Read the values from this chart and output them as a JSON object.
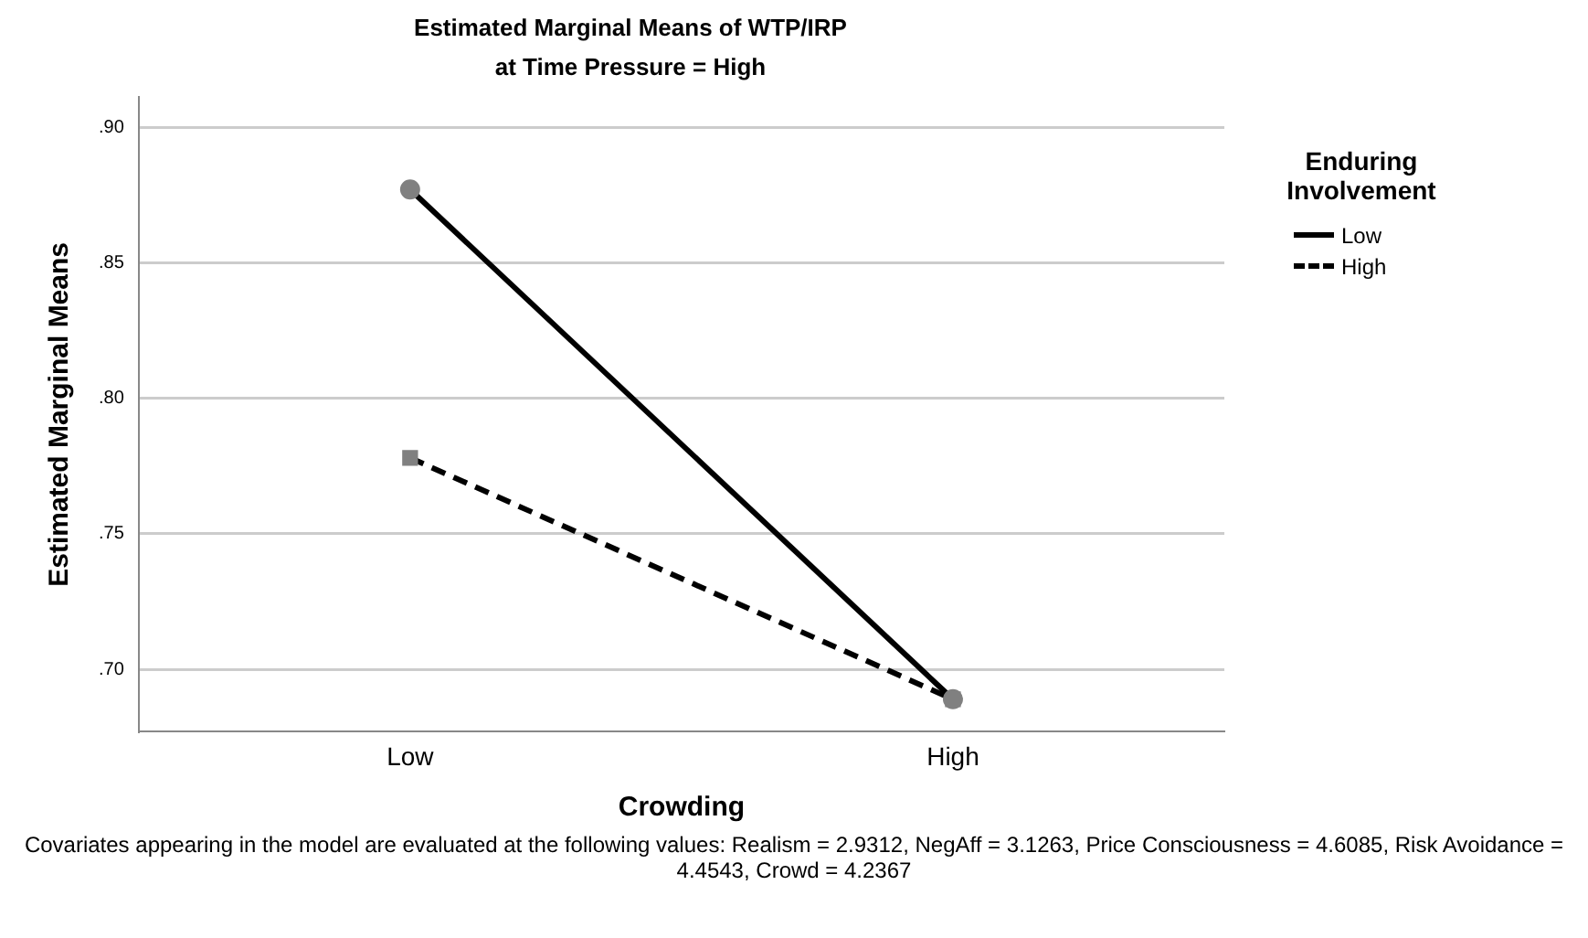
{
  "chart_data": {
    "type": "line",
    "title": "Estimated Marginal Means of WTP/IRP",
    "subtitle": "at Time Pressure = High",
    "xlabel": "Crowding",
    "ylabel": "Estimated Marginal Means",
    "legend_title": "Enduring Involvement",
    "categories": [
      "Low",
      "High"
    ],
    "series": [
      {
        "name": "Low",
        "color": "#000000",
        "values": [
          0.877,
          0.689
        ],
        "line_style": "solid",
        "marker": "circle"
      },
      {
        "name": "High",
        "color": "#000000",
        "values": [
          0.778,
          0.689
        ],
        "line_style": "dashed",
        "marker": "square"
      }
    ],
    "ylim": [
      0.677,
      0.911
    ],
    "yticks": [
      {
        "value": 0.7,
        "label": ".70"
      },
      {
        "value": 0.75,
        "label": ".75"
      },
      {
        "value": 0.8,
        "label": ".80"
      },
      {
        "value": 0.85,
        "label": ".85"
      },
      {
        "value": 0.9,
        "label": ".90"
      }
    ],
    "grid": "y",
    "legend": "right",
    "annotations": [
      "Covariates appearing in the model are evaluated at the following values: Realism = 2.9312, NegAff = 3.1263, Price Consciousness = 4.6085, Risk Avoidance = 4.4543, Crowd = 4.2367"
    ]
  }
}
